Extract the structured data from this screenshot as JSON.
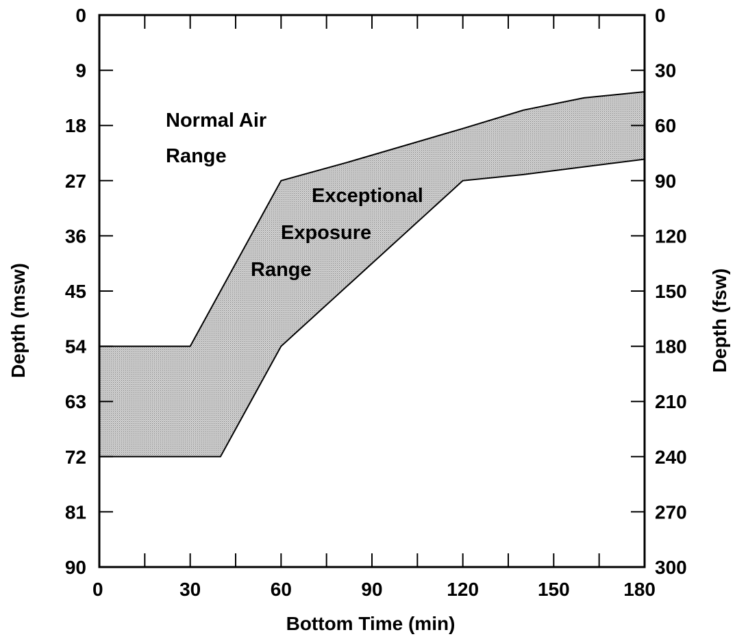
{
  "chart_data": {
    "type": "area",
    "title": "",
    "xlabel": "Bottom Time (min)",
    "ylabel_left": "Depth (msw)",
    "ylabel_right": "Depth (fsw)",
    "xlim": [
      0,
      180
    ],
    "ylim": [
      0,
      90
    ],
    "y_inverted": true,
    "x_ticks": [
      "0",
      "30",
      "60",
      "90",
      "120",
      "150",
      "180"
    ],
    "y_left_ticks": [
      "0",
      "9",
      "18",
      "27",
      "36",
      "45",
      "54",
      "63",
      "72",
      "81",
      "90"
    ],
    "y_right_ticks": [
      "0",
      "30",
      "60",
      "90",
      "120",
      "150",
      "180",
      "210",
      "240",
      "270",
      "300"
    ],
    "grid": false,
    "legend": "none",
    "fill_color": "#bdbdbd",
    "series": [
      {
        "name": "Exceptional Exposure Range",
        "upper_boundary": [
          {
            "x": 0,
            "y": 54
          },
          {
            "x": 30,
            "y": 54
          },
          {
            "x": 60,
            "y": 27
          },
          {
            "x": 82,
            "y": 24
          },
          {
            "x": 120,
            "y": 18.5
          },
          {
            "x": 140,
            "y": 15.5
          },
          {
            "x": 160,
            "y": 13.5
          },
          {
            "x": 180,
            "y": 12.5
          }
        ],
        "lower_boundary": [
          {
            "x": 0,
            "y": 72
          },
          {
            "x": 40,
            "y": 72
          },
          {
            "x": 60,
            "y": 54
          },
          {
            "x": 120,
            "y": 27
          },
          {
            "x": 140,
            "y": 26
          },
          {
            "x": 180,
            "y": 23.5
          }
        ]
      }
    ],
    "annotations": [
      {
        "id": "normal-air",
        "lines": [
          "Normal Air",
          "Range"
        ],
        "x": 22,
        "y": 18.5
      },
      {
        "id": "exceptional-exposure",
        "lines": [
          "Exceptional",
          "Exposure",
          "Range"
        ]
      }
    ]
  }
}
